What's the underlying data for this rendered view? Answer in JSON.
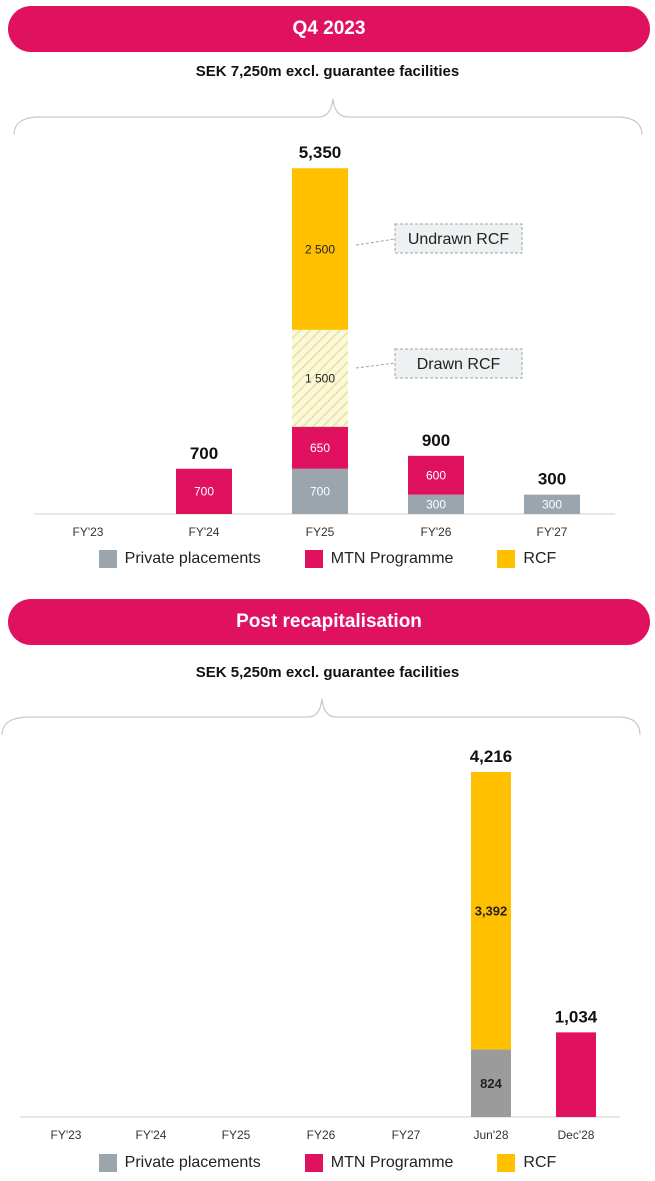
{
  "colors": {
    "private": "#9aa5ad",
    "mtn": "#e0115f",
    "rcf": "#ffc000",
    "hatch": "#e8e29a",
    "private_dark": "#9b9b9b"
  },
  "panel1": {
    "banner": "Q4 2023",
    "subtitle": "SEK 7,250m excl. guarantee facilities",
    "callouts": {
      "undrawn": "Undrawn RCF",
      "drawn": "Drawn RCF"
    },
    "legend": [
      "Private placements",
      "MTN Programme",
      "RCF"
    ]
  },
  "panel2": {
    "banner": "Post recapitalisation",
    "subtitle": "SEK 5,250m excl. guarantee facilities",
    "legend": [
      "Private placements",
      "MTN Programme",
      "RCF"
    ]
  },
  "chart_data": [
    {
      "type": "bar",
      "stacked": true,
      "title": "Q4 2023",
      "ylim": [
        0,
        5400
      ],
      "categories": [
        "FY'23",
        "FY'24",
        "FY25",
        "FY'26",
        "FY'27"
      ],
      "totals": [
        "",
        "700",
        "5,350",
        "900",
        "300"
      ],
      "series": [
        {
          "name": "Private placements",
          "values": [
            0,
            0,
            700,
            300,
            300
          ],
          "labels": [
            "",
            "",
            "700",
            "300",
            "300"
          ]
        },
        {
          "name": "MTN Programme",
          "values": [
            0,
            700,
            650,
            600,
            0
          ],
          "labels": [
            "",
            "700",
            "650",
            "600",
            ""
          ]
        },
        {
          "name": "Drawn RCF",
          "values": [
            0,
            0,
            1500,
            0,
            0
          ],
          "labels": [
            "",
            "",
            "1 500",
            "",
            ""
          ]
        },
        {
          "name": "Undrawn RCF",
          "values": [
            0,
            0,
            2500,
            0,
            0
          ],
          "labels": [
            "",
            "",
            "2 500",
            "",
            ""
          ]
        }
      ]
    },
    {
      "type": "bar",
      "stacked": true,
      "title": "Post recapitalisation",
      "ylim": [
        0,
        4216
      ],
      "categories": [
        "FY'23",
        "FY'24",
        "FY25",
        "FY26",
        "FY27",
        "Jun'28",
        "Dec'28"
      ],
      "totals": [
        "",
        "",
        "",
        "",
        "",
        "4,216",
        "1,034"
      ],
      "series": [
        {
          "name": "Private placements",
          "values": [
            0,
            0,
            0,
            0,
            0,
            824,
            0
          ],
          "labels": [
            "",
            "",
            "",
            "",
            "",
            "824",
            ""
          ]
        },
        {
          "name": "MTN Programme",
          "values": [
            0,
            0,
            0,
            0,
            0,
            0,
            1034
          ],
          "labels": [
            "",
            "",
            "",
            "",
            "",
            "",
            ""
          ]
        },
        {
          "name": "RCF",
          "values": [
            0,
            0,
            0,
            0,
            0,
            3392,
            0
          ],
          "labels": [
            "",
            "",
            "",
            "",
            "",
            "3,392",
            ""
          ]
        }
      ]
    }
  ]
}
